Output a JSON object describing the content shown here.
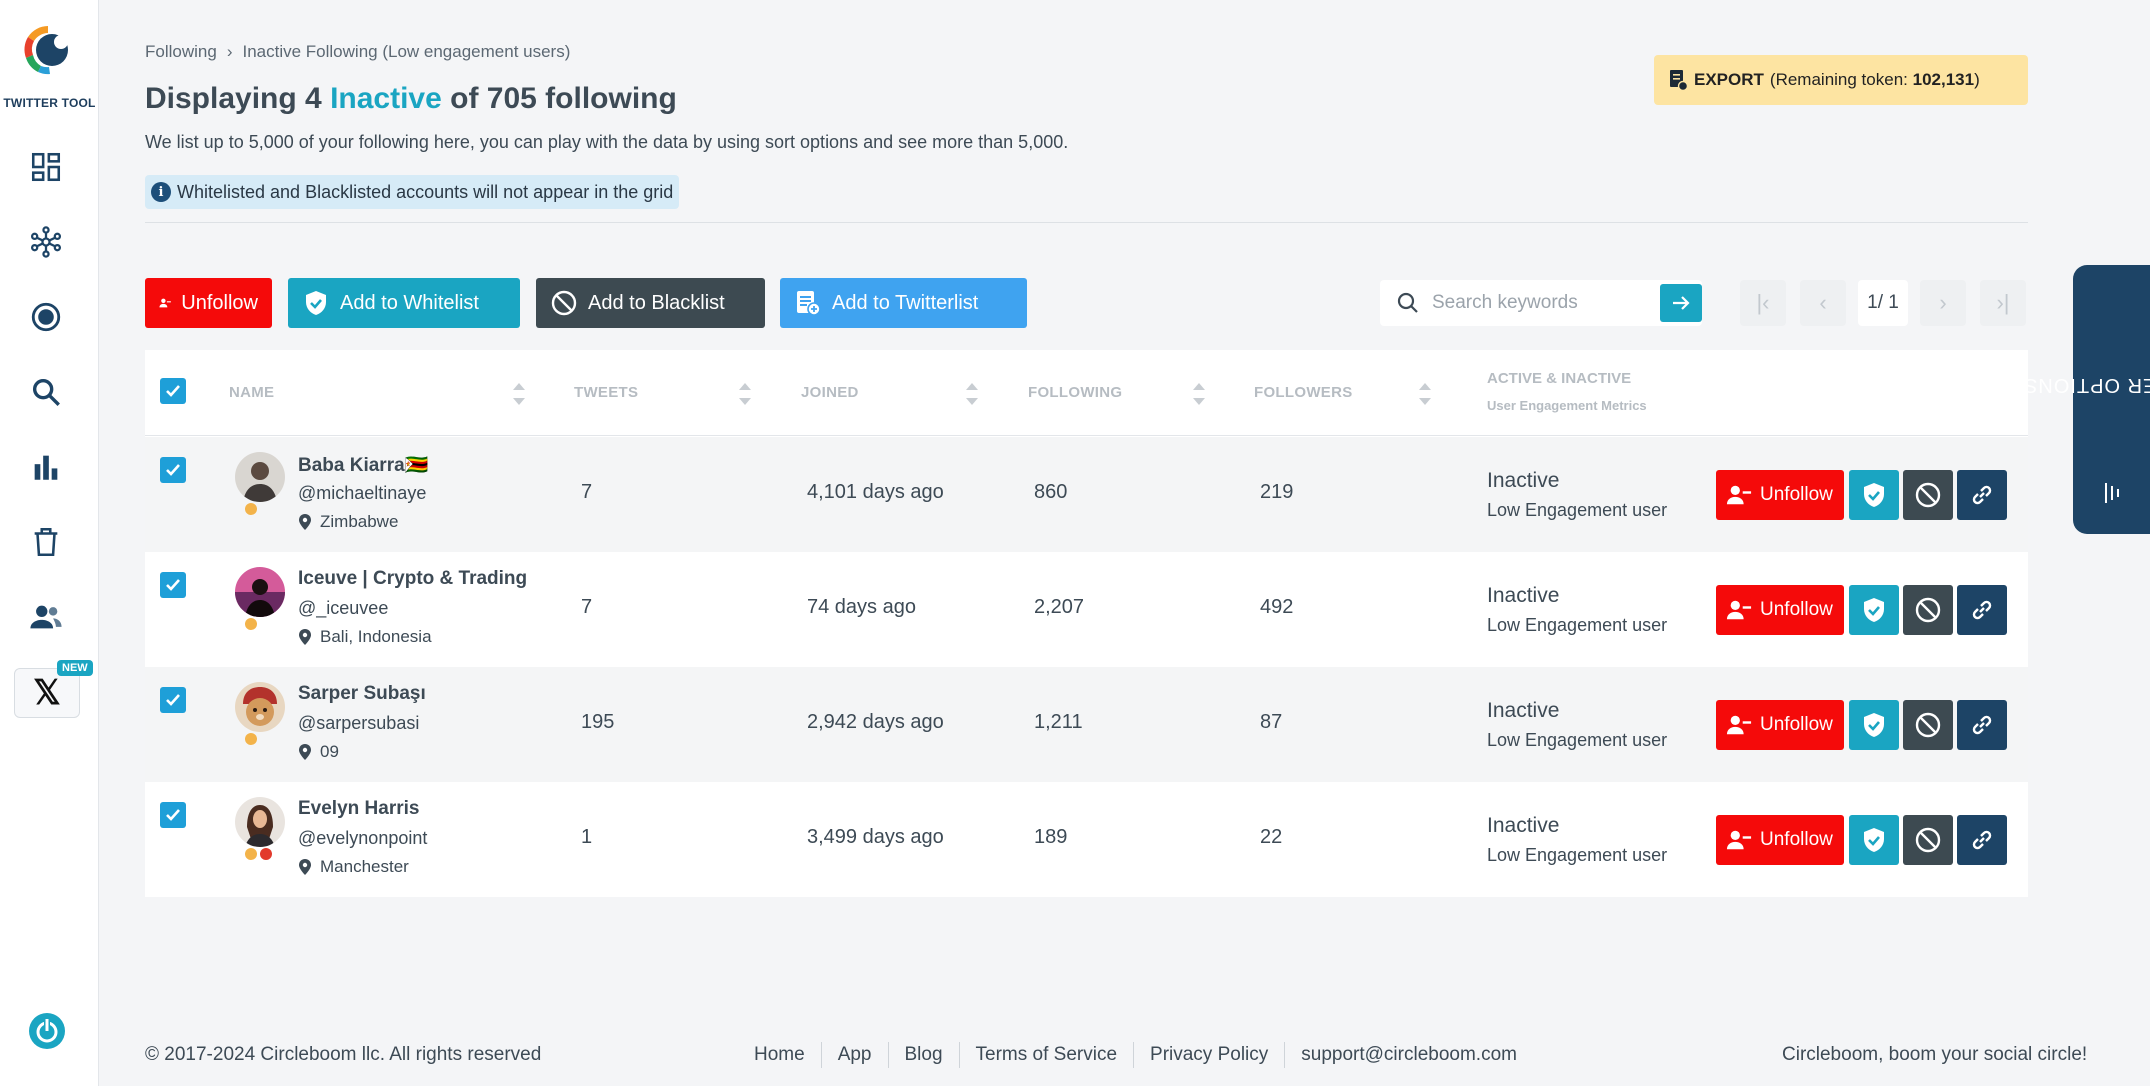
{
  "app": {
    "logo_text": "TWITTER TOOL",
    "new_badge": "NEW"
  },
  "breadcrumb": {
    "root": "Following",
    "separator": "›",
    "current": "Inactive Following (Low engagement users)"
  },
  "header": {
    "title_prefix": "Displaying 4",
    "title_accent": "Inactive",
    "title_suffix": "of 705 following",
    "subtitle": "We list up to 5,000 of your following here, you can play with the data by using sort options and see more than 5,000.",
    "notice": "Whitelisted and Blacklisted accounts will not appear in the grid",
    "notice_icon": "i"
  },
  "export": {
    "label": "EXPORT",
    "remaining_prefix": "(Remaining token:",
    "remaining_value": "102,131",
    "remaining_suffix": ")"
  },
  "actions": {
    "unfollow": "Unfollow",
    "whitelist": "Add to Whitelist",
    "blacklist": "Add to Blacklist",
    "twitterlist": "Add to Twitterlist"
  },
  "search": {
    "placeholder": "Search keywords"
  },
  "pagination": {
    "current": "1/ 1",
    "first": "|‹",
    "prev": "‹",
    "next": "›",
    "last": "›|"
  },
  "table": {
    "columns": {
      "name": "NAME",
      "tweets": "TWEETS",
      "joined": "JOINED",
      "following": "FOLLOWING",
      "followers": "FOLLOWERS",
      "active": "ACTIVE & INACTIVE",
      "active_sub": "User Engagement Metrics"
    },
    "rows": [
      {
        "name": "Baba Kiarra🇿🇼",
        "handle": "@michaeltinaye",
        "location": "Zimbabwe",
        "tweets": "7",
        "joined": "4,101 days ago",
        "following": "860",
        "followers": "219",
        "status": "Inactive",
        "status_sub": "Low Engagement user",
        "unfollow": "Unfollow"
      },
      {
        "name": "Iceuve | Crypto & Trading",
        "handle": "@_iceuvee",
        "location": "Bali, Indonesia",
        "tweets": "7",
        "joined": "74 days ago",
        "following": "2,207",
        "followers": "492",
        "status": "Inactive",
        "status_sub": "Low Engagement user",
        "unfollow": "Unfollow"
      },
      {
        "name": "Sarper Subaşı",
        "handle": "@sarpersubasi",
        "location": "09",
        "tweets": "195",
        "joined": "2,942 days ago",
        "following": "1,211",
        "followers": "87",
        "status": "Inactive",
        "status_sub": "Low Engagement user",
        "unfollow": "Unfollow"
      },
      {
        "name": "Evelyn Harris",
        "handle": "@evelynonpoint",
        "location": "Manchester",
        "tweets": "1",
        "joined": "3,499 days ago",
        "following": "189",
        "followers": "22",
        "status": "Inactive",
        "status_sub": "Low Engagement user",
        "unfollow": "Unfollow"
      }
    ]
  },
  "filter_tab": {
    "label": "FILTER OPTIONS"
  },
  "footer": {
    "copyright": "© 2017-2024 Circleboom llc. All rights reserved",
    "links": [
      "Home",
      "App",
      "Blog",
      "Terms of Service",
      "Privacy Policy",
      "support@circleboom.com"
    ],
    "tagline": "Circleboom, boom your social circle!"
  },
  "colors": {
    "accent": "#1aa5c2",
    "danger": "#f50a0a",
    "dark": "#3d4a51",
    "navy": "#1d4466",
    "export_bg": "#fde4a2"
  }
}
